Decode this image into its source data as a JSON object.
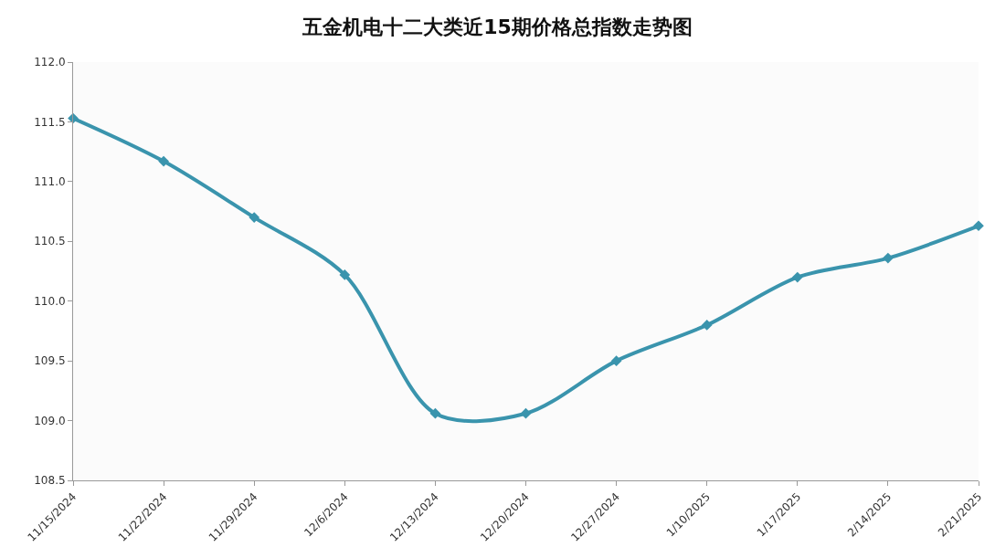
{
  "chart_data": {
    "type": "line",
    "title": "五金机电十二大类近15期价格总指数走势图",
    "categories": [
      "11/15/2024",
      "11/22/2024",
      "11/29/2024",
      "12/6/2024",
      "12/13/2024",
      "12/20/2024",
      "12/27/2024",
      "1/10/2025",
      "1/17/2025",
      "2/14/2025",
      "2/21/2025"
    ],
    "series": [
      {
        "color": "#3a94ad",
        "values": [
          111.53,
          111.17,
          110.7,
          110.22,
          109.06,
          109.06,
          109.5,
          109.8,
          110.2,
          110.36,
          110.63
        ]
      }
    ],
    "ylim": [
      108.5,
      112.0
    ],
    "yticks": [
      {
        "value": 108.5,
        "label": "108.5"
      },
      {
        "value": 109.0,
        "label": "109.0"
      },
      {
        "value": 109.5,
        "label": "109.5"
      },
      {
        "value": 110.0,
        "label": "110.0"
      },
      {
        "value": 110.5,
        "label": "110.5"
      },
      {
        "value": 111.0,
        "label": "111.0"
      },
      {
        "value": 111.5,
        "label": "111.5"
      },
      {
        "value": 112.0,
        "label": "112.0"
      }
    ],
    "marker": "diamond",
    "line_style": "solid",
    "grid": false
  }
}
